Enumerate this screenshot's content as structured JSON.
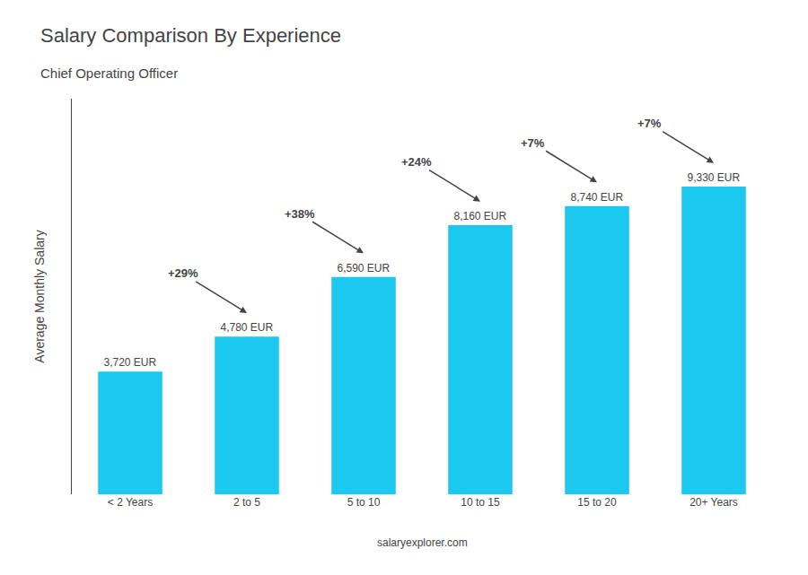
{
  "chart_data": {
    "type": "bar",
    "title": "Salary Comparison By Experience",
    "subtitle": "Chief Operating Officer",
    "categories": [
      "< 2 Years",
      "2 to 5",
      "5 to 10",
      "10 to 15",
      "15 to 20",
      "20+ Years"
    ],
    "values": [
      3720,
      4780,
      6590,
      8160,
      8740,
      9330
    ],
    "value_labels": [
      "3,720 EUR",
      "4,780 EUR",
      "6,590 EUR",
      "8,160 EUR",
      "8,740 EUR",
      "9,330 EUR"
    ],
    "data_labels": true,
    "annotations": [
      "+29%",
      "+38%",
      "+24%",
      "+7%",
      "+7%"
    ],
    "ylabel": "Average Monthly Salary",
    "footer": "salaryexplorer.com",
    "color": "#1ac8f0",
    "ylim": [
      0,
      12000
    ],
    "tick_labels": "x",
    "grid": false
  }
}
